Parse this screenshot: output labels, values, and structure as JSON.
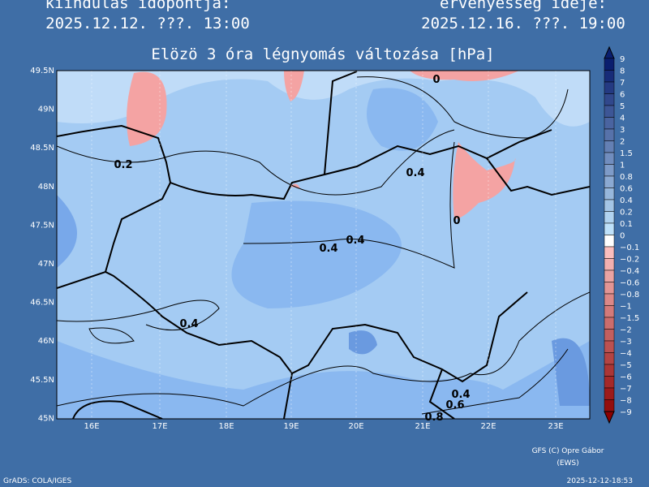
{
  "header": {
    "left_label": "kiindulás időpontja:",
    "left_time": "2025.12.12. ???. 13:00",
    "right_label": "érvényesség ideje:",
    "right_time": "2025.12.16. ???. 19:00",
    "title": "Elözö 3 óra légnyomás változása [hPa]"
  },
  "map": {
    "lat_labels": [
      "49.5N",
      "49N",
      "48.5N",
      "48N",
      "47.5N",
      "47N",
      "46.5N",
      "46N",
      "45.5N",
      "45N"
    ],
    "lon_labels": [
      "16E",
      "17E",
      "18E",
      "19E",
      "20E",
      "21E",
      "22E",
      "23E"
    ],
    "contour_labels": [
      "0.2",
      "0.4",
      "0",
      "0.4",
      "0.4",
      "0.4",
      "0",
      "0.4",
      "0.6",
      "0.8"
    ]
  },
  "colorbar": {
    "labels": [
      "9",
      "8",
      "7",
      "6",
      "5",
      "4",
      "3",
      "2",
      "1.5",
      "1",
      "0.8",
      "0.6",
      "0.4",
      "0.2",
      "0.1",
      "0",
      "−0.1",
      "−0.2",
      "−0.4",
      "−0.6",
      "−0.8",
      "−1",
      "−1.5",
      "−2",
      "−3",
      "−4",
      "−5",
      "−6",
      "−7",
      "−8",
      "−9"
    ]
  },
  "footer": {
    "credit": "GFS (C) Opre Gábor",
    "credit2": "(EWS)",
    "software": "GrADS: COLA/IGES",
    "timestamp": "2025-12-12-18:53"
  }
}
